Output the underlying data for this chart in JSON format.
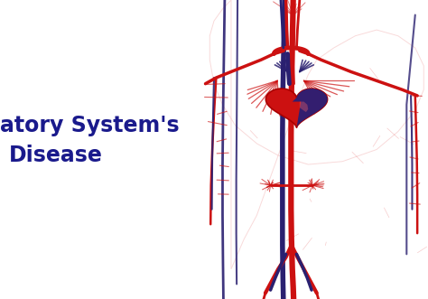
{
  "title_line1": "Circulatory System's",
  "title_line2": "Disease",
  "title_color": "#1a1a8c",
  "title_fontsize": 17,
  "bg_color": "#ffffff",
  "fig_width": 4.74,
  "fig_height": 3.31,
  "artery_red": "#cc1111",
  "artery_light": "#dd3333",
  "vein_dark": "#2a2070",
  "heart_red": "#cc1111",
  "heart_dark": "#22207a"
}
